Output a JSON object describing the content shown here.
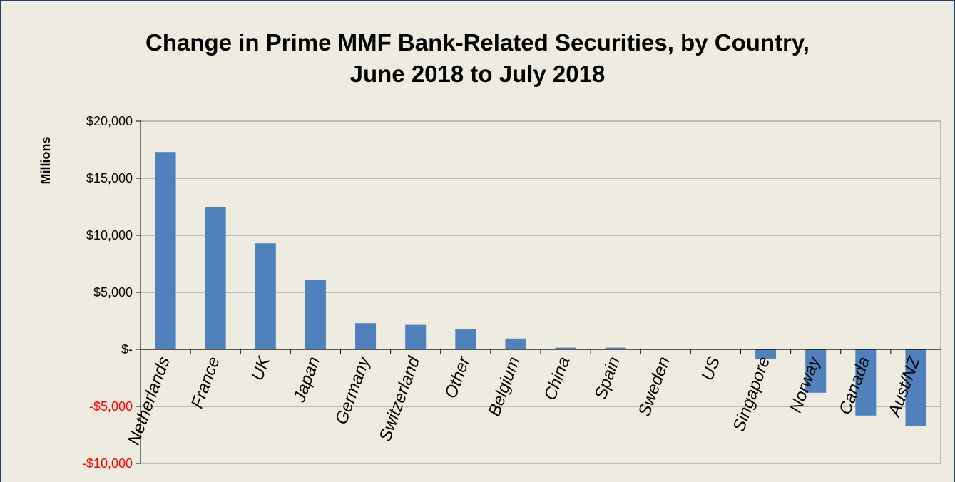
{
  "chart_data": {
    "type": "bar",
    "title_lines": [
      "Change in Prime MMF Bank-Related Securities, by Country,",
      "June 2018 to July 2018"
    ],
    "ylabel": "Millions",
    "xlabel": "",
    "categories": [
      "Netherlands",
      "France",
      "UK",
      "Japan",
      "Germany",
      "Switzerland",
      "Other",
      "Belgium",
      "China",
      "Spain",
      "Sweden",
      "US",
      "Singapore",
      "Norway",
      "Canada",
      "Aust/NZ"
    ],
    "values": [
      17300,
      12500,
      9300,
      6100,
      2300,
      2150,
      1750,
      950,
      150,
      150,
      0,
      0,
      -850,
      -3800,
      -5800,
      -6700
    ],
    "ylim": [
      -10000,
      20000
    ],
    "yticks": [
      {
        "value": 20000,
        "label": "$20,000"
      },
      {
        "value": 15000,
        "label": "$15,000"
      },
      {
        "value": 10000,
        "label": "$10,000"
      },
      {
        "value": 5000,
        "label": "$5,000"
      },
      {
        "value": 0,
        "label": "$-"
      },
      {
        "value": -5000,
        "label": "-$5,000"
      },
      {
        "value": -10000,
        "label": "-$10,000"
      }
    ],
    "grid": true,
    "legend": "none",
    "colors": {
      "bar": "#4f81bd",
      "negative_label": "#ff0000",
      "grid": "#888888",
      "background": "#eeebe1",
      "border": "#1f3f6e"
    }
  }
}
